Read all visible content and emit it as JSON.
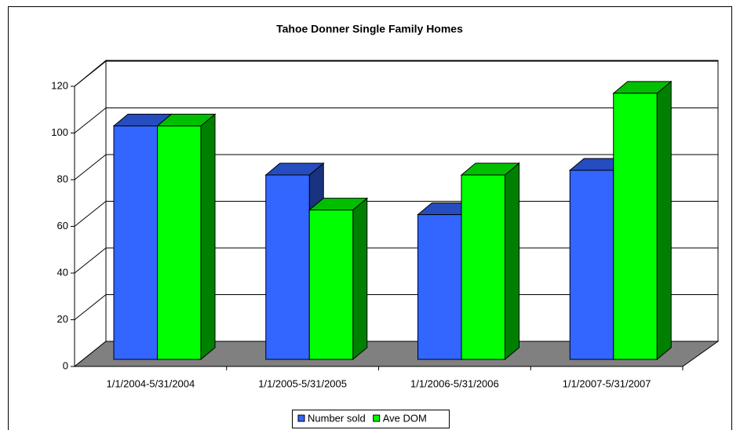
{
  "chart_data": {
    "type": "bar3d",
    "title": "Tahoe Donner Single Family Homes",
    "categories": [
      "1/1/2004-5/31/2004",
      "1/1/2005-5/31/2005",
      "1/1/2006-5/31/2006",
      "1/1/2007-5/31/2007"
    ],
    "series": [
      {
        "name": "Number sold",
        "color": "#3366ff",
        "values": [
          100,
          79,
          62,
          81
        ]
      },
      {
        "name": "Ave DOM",
        "color": "#00ff00",
        "values": [
          100,
          64,
          79,
          114
        ]
      }
    ],
    "ylim": [
      0,
      120
    ],
    "yticks": [
      0,
      20,
      40,
      60,
      80,
      100,
      120
    ],
    "grid": true,
    "legend": "bottom"
  }
}
